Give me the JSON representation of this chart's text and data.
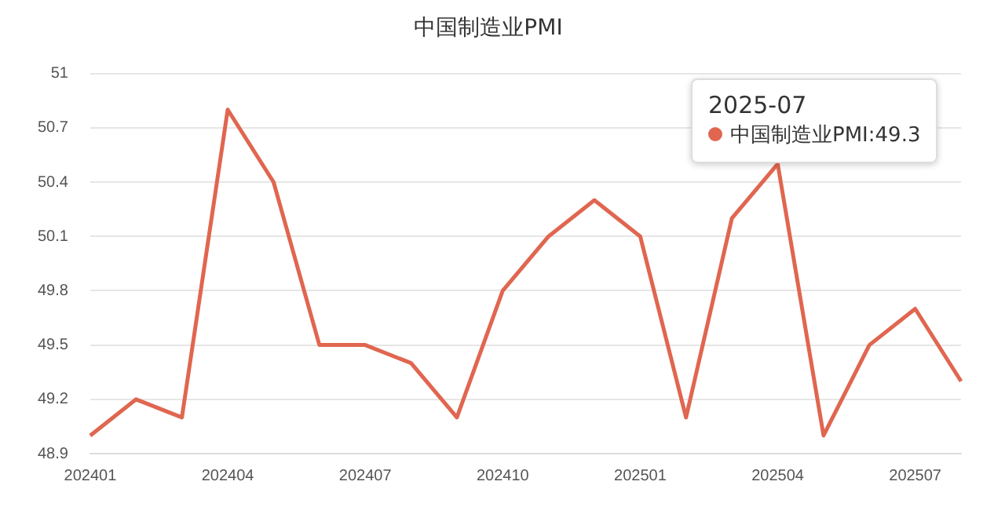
{
  "chart_data": {
    "type": "line",
    "title": "中国制造业PMI",
    "categories": [
      "202401",
      null,
      null,
      "202404",
      null,
      null,
      "202407",
      null,
      null,
      "202410",
      null,
      null,
      "202501",
      null,
      null,
      "202504",
      null,
      null,
      "202507",
      null
    ],
    "series": [
      {
        "name": "中国制造业PMI",
        "color": "#e06650",
        "values": [
          49.0,
          49.2,
          49.1,
          50.8,
          50.4,
          49.5,
          49.5,
          49.4,
          49.1,
          49.8,
          50.1,
          50.3,
          50.1,
          49.1,
          50.2,
          50.5,
          49.0,
          49.5,
          49.7,
          49.3
        ]
      }
    ],
    "ylim": [
      48.9,
      51
    ],
    "yticks": [
      48.9,
      49.2,
      49.5,
      49.8,
      50.1,
      50.4,
      50.7,
      51
    ],
    "grid": "y",
    "legend": "top right",
    "marker": "none",
    "annotations": [
      "2025-07",
      ":49.3"
    ]
  }
}
